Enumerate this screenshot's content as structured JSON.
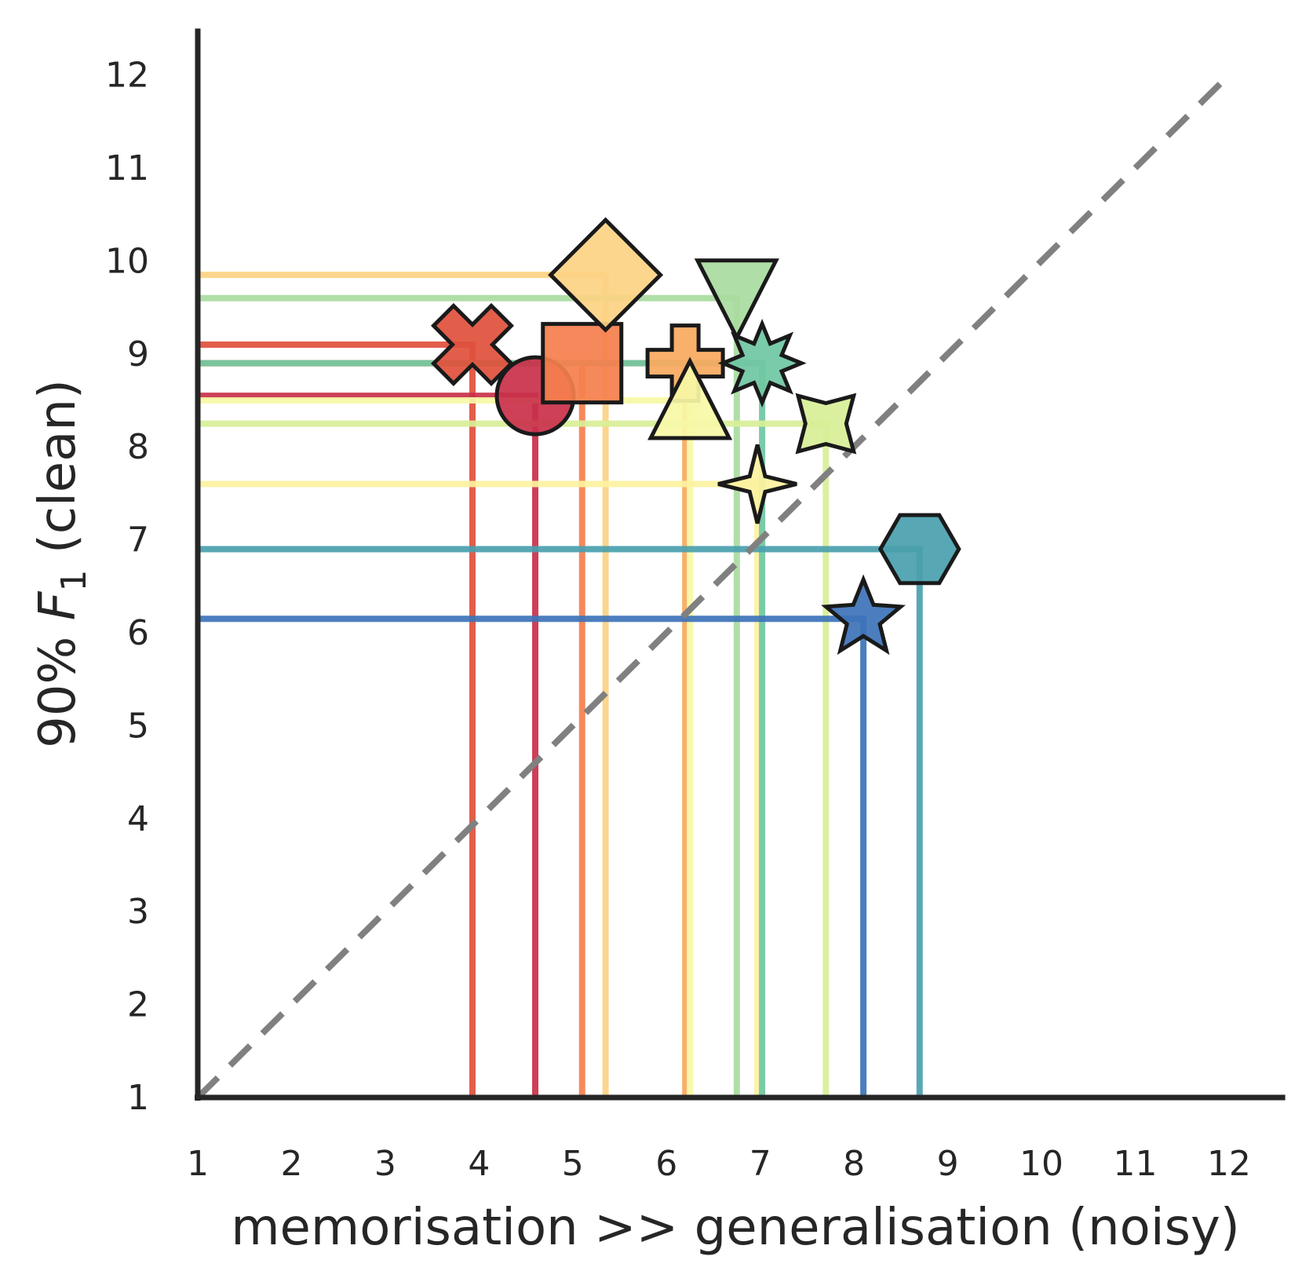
{
  "chart_data": {
    "type": "scatter",
    "xlabel": "memorisation >> generalisation (noisy)",
    "ylabel_prefix": "90% ",
    "ylabel_var": "F",
    "ylabel_sub": "1",
    "ylabel_suffix": " (clean)",
    "xlim": [
      1,
      12.6
    ],
    "ylim": [
      1,
      12.5
    ],
    "xticks": [
      "1",
      "2",
      "3",
      "4",
      "5",
      "6",
      "7",
      "8",
      "9",
      "10",
      "11",
      "12"
    ],
    "yticks": [
      "1",
      "2",
      "3",
      "4",
      "5",
      "6",
      "7",
      "8",
      "9",
      "10",
      "11",
      "12"
    ],
    "grid": false,
    "reference_line": {
      "style": "dashed",
      "color": "#808080",
      "from": [
        1,
        1
      ],
      "to": [
        12,
        12
      ]
    },
    "points": [
      {
        "x": 3.93,
        "y": 9.1,
        "marker": "x-filled",
        "color": "#e0503c"
      },
      {
        "x": 4.6,
        "y": 8.55,
        "marker": "circle",
        "color": "#c9304a"
      },
      {
        "x": 5.1,
        "y": 8.9,
        "marker": "square",
        "color": "#f57f4d"
      },
      {
        "x": 5.35,
        "y": 9.85,
        "marker": "diamond",
        "color": "#fcd383"
      },
      {
        "x": 6.2,
        "y": 8.9,
        "marker": "plus-filled",
        "color": "#f9a95e"
      },
      {
        "x": 6.25,
        "y": 8.5,
        "marker": "triangle-up",
        "color": "#f7f8a6"
      },
      {
        "x": 6.75,
        "y": 9.6,
        "marker": "triangle-down",
        "color": "#a9dba0"
      },
      {
        "x": 6.97,
        "y": 7.6,
        "marker": "star4",
        "color": "#fcf2a0"
      },
      {
        "x": 7.02,
        "y": 8.9,
        "marker": "star8",
        "color": "#6fc7a2"
      },
      {
        "x": 7.7,
        "y": 8.25,
        "marker": "star4-wide",
        "color": "#d8ef97"
      },
      {
        "x": 8.1,
        "y": 6.15,
        "marker": "star5",
        "color": "#3d73b8"
      },
      {
        "x": 8.7,
        "y": 6.9,
        "marker": "hexagon",
        "color": "#4a9fae"
      }
    ]
  }
}
